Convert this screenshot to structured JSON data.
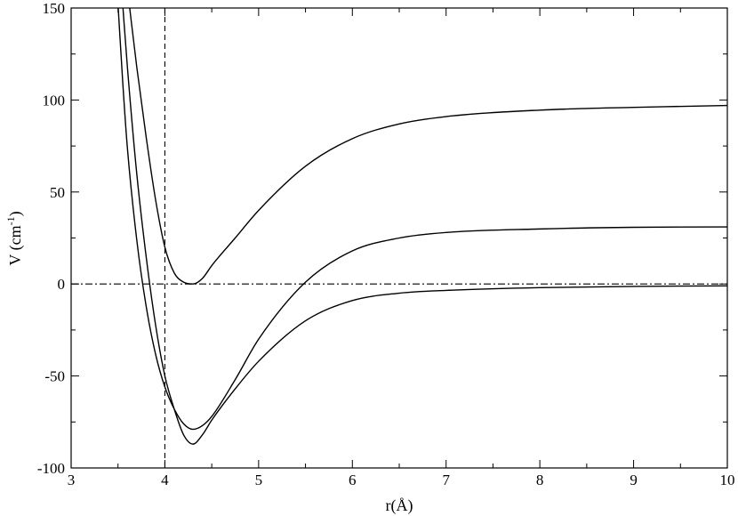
{
  "chart_data": {
    "type": "line",
    "title": "",
    "xlabel": "r(Å)",
    "ylabel_main": "V (cm",
    "ylabel_sup": "-1",
    "ylabel_close": ")",
    "xlim": [
      3,
      10
    ],
    "ylim": [
      -100,
      150
    ],
    "grid": false,
    "xticks": [
      3,
      4,
      5,
      6,
      7,
      8,
      9,
      10
    ],
    "xtick_labels": [
      "3",
      "4",
      "5",
      "6",
      "7",
      "8",
      "9",
      "10"
    ],
    "yticks": [
      -100,
      -50,
      0,
      50,
      100,
      150
    ],
    "ytick_labels": [
      "-100",
      "-50",
      "0",
      "50",
      "100",
      "150"
    ],
    "reference_lines": [
      {
        "orientation": "vertical",
        "value": 4,
        "style": "dashed"
      },
      {
        "orientation": "horizontal",
        "value": 0,
        "style": "dash-dot"
      }
    ],
    "series": [
      {
        "x": [
          3.5,
          3.55,
          3.6,
          3.7,
          3.8,
          3.9,
          4.0,
          4.1,
          4.2,
          4.3,
          4.4,
          4.5,
          4.75,
          5.0,
          5.5,
          6.0,
          6.5,
          7.0,
          8.0,
          9.0,
          10.0
        ],
        "values": [
          152,
          110,
          74,
          24,
          -12,
          -38,
          -56,
          -68,
          -76,
          -79,
          -77,
          -72,
          -52,
          -30,
          1,
          18,
          25,
          28,
          29.9,
          30.8,
          31
        ]
      },
      {
        "x": [
          3.55,
          3.6,
          3.7,
          3.8,
          3.9,
          4.0,
          4.1,
          4.2,
          4.3,
          4.4,
          4.5,
          4.75,
          5.0,
          5.5,
          6.0,
          6.5,
          7.0,
          8.0,
          9.0,
          10.0
        ],
        "values": [
          152,
          118,
          60,
          15,
          -22,
          -50,
          -68,
          -82,
          -87,
          -82,
          -74,
          -57,
          -42,
          -20,
          -9,
          -5,
          -3.5,
          -2,
          -1.3,
          -1
        ]
      },
      {
        "x": [
          3.62,
          3.7,
          3.8,
          3.9,
          4.0,
          4.1,
          4.2,
          4.3,
          4.4,
          4.5,
          4.75,
          5.0,
          5.5,
          6.0,
          6.5,
          7.0,
          8.0,
          9.0,
          10.0
        ],
        "values": [
          152,
          118,
          80,
          46,
          20,
          6,
          1,
          0,
          3,
          10,
          25,
          40,
          64,
          79,
          87,
          91,
          94.5,
          96,
          97
        ]
      }
    ]
  }
}
